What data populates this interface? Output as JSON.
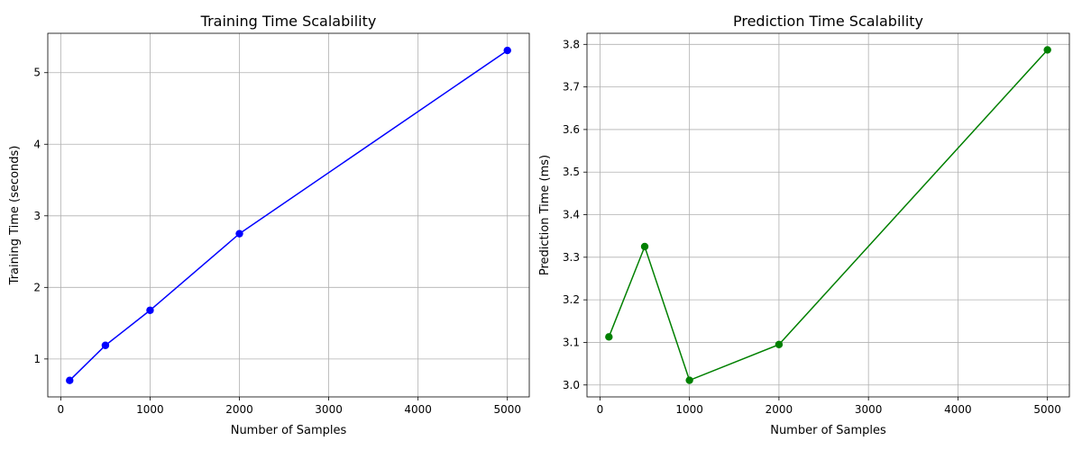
{
  "chart_data": [
    {
      "type": "line",
      "title": "Training Time Scalability",
      "xlabel": "Number of Samples",
      "ylabel": "Training Time (seconds)",
      "xlim": [
        -145,
        5245
      ],
      "ylim": [
        0.47,
        5.55
      ],
      "xticks": [
        0,
        1000,
        2000,
        3000,
        4000,
        5000
      ],
      "yticks": [
        1,
        2,
        3,
        4,
        5
      ],
      "grid": true,
      "color": "#0000ff",
      "series": [
        {
          "x": [
            100,
            500,
            1000,
            2000,
            5000
          ],
          "values": [
            0.7,
            1.19,
            1.68,
            2.75,
            5.31
          ]
        }
      ]
    },
    {
      "type": "line",
      "title": "Prediction Time Scalability",
      "xlabel": "Number of Samples",
      "ylabel": "Prediction Time (ms)",
      "xlim": [
        -145,
        5245
      ],
      "ylim": [
        2.972,
        3.826
      ],
      "xticks": [
        0,
        1000,
        2000,
        3000,
        4000,
        5000
      ],
      "yticks": [
        3.0,
        3.1,
        3.2,
        3.3,
        3.4,
        3.5,
        3.6,
        3.7,
        3.8
      ],
      "grid": true,
      "color": "#008000",
      "series": [
        {
          "x": [
            100,
            500,
            1000,
            2000,
            5000
          ],
          "values": [
            3.113,
            3.325,
            3.011,
            3.095,
            3.787
          ]
        }
      ]
    }
  ]
}
